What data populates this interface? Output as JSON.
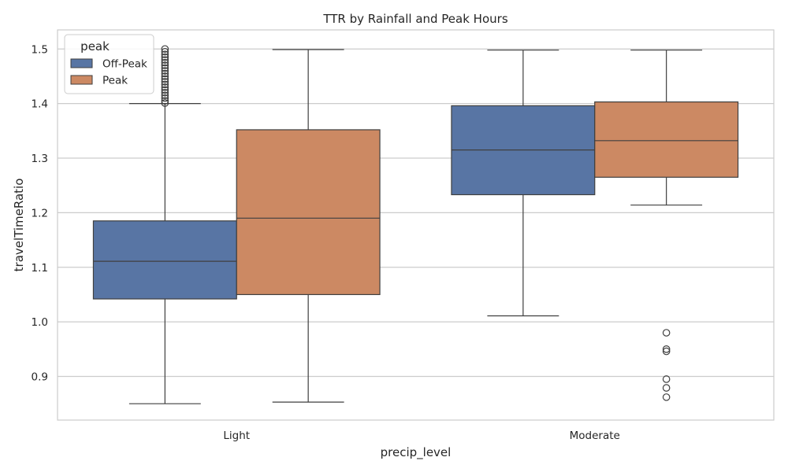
{
  "chart_data": {
    "type": "box",
    "title": "TTR by Rainfall and Peak Hours",
    "xlabel": "precip_level",
    "ylabel": "travelTimeRatio",
    "categories": [
      "Light",
      "Moderate"
    ],
    "ylim": [
      0.82,
      1.535
    ],
    "yticks": [
      0.9,
      1.0,
      1.1,
      1.2,
      1.3,
      1.4,
      1.5
    ],
    "grid": true,
    "legend": {
      "title": "peak",
      "placement": "top-left"
    },
    "series": [
      {
        "name": "Off-Peak",
        "color": "#5875a4",
        "boxes": [
          {
            "category": "Light",
            "whisker_low": 0.85,
            "q1": 1.042,
            "median": 1.111,
            "q3": 1.185,
            "whisker_high": 1.4,
            "outliers": [
              1.401,
              1.405,
              1.41,
              1.415,
              1.42,
              1.425,
              1.43,
              1.435,
              1.44,
              1.445,
              1.45,
              1.455,
              1.46,
              1.465,
              1.47,
              1.475,
              1.48,
              1.485,
              1.49,
              1.495,
              1.5
            ]
          },
          {
            "category": "Moderate",
            "whisker_low": 1.011,
            "q1": 1.233,
            "median": 1.315,
            "q3": 1.396,
            "whisker_high": 1.498,
            "outliers": []
          }
        ]
      },
      {
        "name": "Peak",
        "color": "#cc8963",
        "boxes": [
          {
            "category": "Light",
            "whisker_low": 0.853,
            "q1": 1.05,
            "median": 1.19,
            "q3": 1.352,
            "whisker_high": 1.499,
            "outliers": []
          },
          {
            "category": "Moderate",
            "whisker_low": 1.214,
            "q1": 1.265,
            "median": 1.332,
            "q3": 1.403,
            "whisker_high": 1.498,
            "outliers": [
              0.98,
              0.95,
              0.946,
              0.895,
              0.879,
              0.862
            ]
          }
        ]
      }
    ]
  }
}
